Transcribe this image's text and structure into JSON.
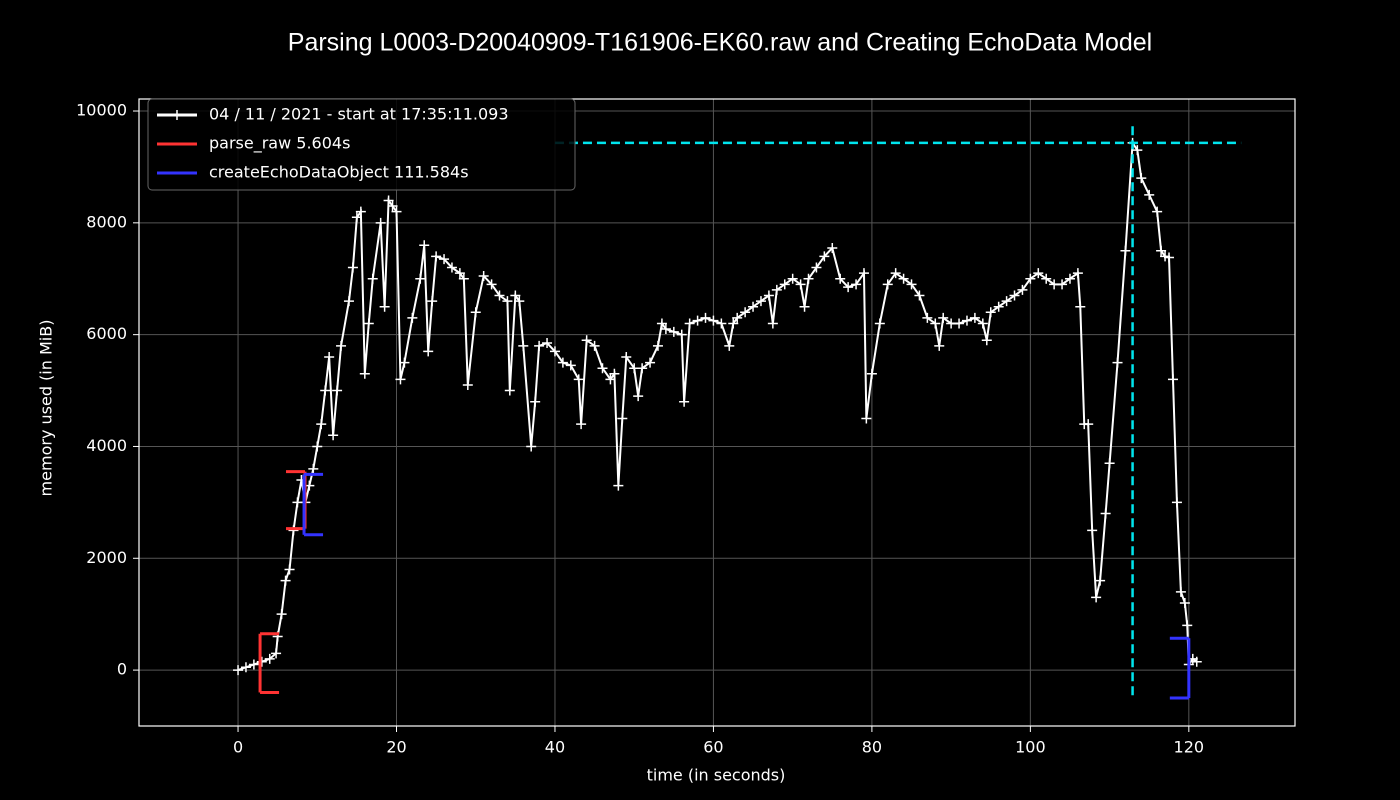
{
  "chart_data": {
    "type": "line",
    "title": "Parsing L0003-D20040909-T161906-EK60.raw and Creating EchoData Model",
    "xlabel": "time (in seconds)",
    "ylabel": "memory used (in MiB)",
    "xlim": [
      -12.5,
      133.4
    ],
    "ylim": [
      -1000,
      10215
    ],
    "xticks": [
      0,
      20,
      40,
      60,
      80,
      100,
      120
    ],
    "yticks": [
      0,
      2000,
      4000,
      6000,
      8000,
      10000
    ],
    "grid": true,
    "legend": "upper left",
    "series": [
      {
        "name": "04 / 11 / 2021 - start at 17:35:11.093",
        "color": "#ffffff",
        "x": [
          0,
          1,
          2,
          3,
          4,
          4.8,
          5,
          5.5,
          6,
          6.5,
          7,
          7.5,
          8,
          8.5,
          9,
          9.5,
          10,
          10.5,
          11,
          11.5,
          12,
          12.5,
          13,
          14,
          14.5,
          15,
          15.5,
          16,
          16.5,
          17,
          18,
          18.5,
          19,
          19.5,
          20,
          20.5,
          21,
          22,
          23,
          23.5,
          24,
          24.5,
          25,
          26,
          27,
          28,
          28.5,
          29,
          30,
          31,
          32,
          33,
          34,
          34.3,
          35,
          35.5,
          36,
          37,
          37.5,
          38,
          39,
          40,
          41,
          42,
          43,
          43.3,
          44,
          45,
          46,
          47,
          47.5,
          48,
          48.5,
          49,
          50,
          50.5,
          51,
          52,
          53,
          53.5,
          54,
          55,
          56,
          56.3,
          57,
          58,
          59,
          60,
          61,
          62,
          62.5,
          63,
          64,
          65,
          66,
          67,
          67.5,
          68,
          69,
          70,
          71,
          71.5,
          72,
          73,
          74,
          75,
          76,
          77,
          78,
          79,
          79.3,
          80,
          81,
          82,
          83,
          84,
          85,
          86,
          87,
          88,
          88.5,
          89,
          90,
          91,
          92,
          93,
          94,
          94.5,
          95,
          96,
          97,
          98,
          99,
          100,
          101,
          102,
          103,
          104,
          105,
          106,
          106.3,
          106.8,
          107.3,
          107.8,
          108.3,
          108.8,
          109.5,
          110,
          111,
          112,
          112.9,
          113.5,
          114,
          115,
          116,
          116.5,
          117,
          117.5,
          118,
          118.5,
          119,
          119.5,
          119.8,
          120,
          120.5,
          121
        ],
        "values": [
          0,
          50,
          100,
          150,
          200,
          300,
          600,
          1000,
          1600,
          1800,
          2500,
          3000,
          3400,
          3000,
          3300,
          3600,
          4000,
          4400,
          5000,
          5600,
          4200,
          5000,
          5800,
          6600,
          7200,
          8100,
          8200,
          5300,
          6200,
          7000,
          8000,
          6500,
          8400,
          8300,
          8200,
          5200,
          5500,
          6300,
          7000,
          7600,
          5700,
          6600,
          7400,
          7350,
          7200,
          7100,
          7000,
          5100,
          6400,
          7050,
          6900,
          6700,
          6600,
          5000,
          6700,
          6600,
          5800,
          4000,
          4800,
          5800,
          5850,
          5700,
          5500,
          5450,
          5200,
          4400,
          5900,
          5800,
          5400,
          5200,
          5300,
          3300,
          4500,
          5600,
          5400,
          4900,
          5400,
          5500,
          5800,
          6200,
          6100,
          6050,
          6000,
          4800,
          6200,
          6250,
          6300,
          6250,
          6200,
          5800,
          6200,
          6300,
          6400,
          6500,
          6600,
          6700,
          6200,
          6800,
          6900,
          7000,
          6900,
          6500,
          7000,
          7200,
          7400,
          7550,
          7000,
          6850,
          6900,
          7100,
          4500,
          5300,
          6200,
          6900,
          7100,
          7000,
          6900,
          6700,
          6300,
          6200,
          5800,
          6300,
          6200,
          6200,
          6250,
          6300,
          6200,
          5900,
          6400,
          6500,
          6600,
          6700,
          6800,
          7000,
          7100,
          7000,
          6900,
          6900,
          7000,
          7100,
          6500,
          4400,
          4400,
          2500,
          1300,
          1600,
          2800,
          3700,
          5500,
          7500,
          9430,
          9300,
          8800,
          8500,
          8200,
          7500,
          7400,
          7380,
          5200,
          3000,
          1400,
          1200,
          800,
          100,
          200,
          150
        ]
      }
    ],
    "functions": [
      {
        "name": "parse_raw 5.604s",
        "color": "#ff3333",
        "start": 2.78,
        "end": 8.45,
        "start_range": [
          -400,
          650
        ],
        "end_range": [
          2530,
          3550
        ]
      },
      {
        "name": "createEchoDataObject 111.584s",
        "color": "#3333ff",
        "start": 8.33,
        "end": 120.0,
        "start_range": [
          2420,
          3500
        ],
        "end_range": [
          -500,
          570
        ]
      }
    ],
    "peak": {
      "x": 112.9,
      "y": 9430,
      "x_extent": [
        40,
        126.6
      ],
      "y_extent": [
        -450,
        9800
      ],
      "color": "#00e5ee"
    }
  }
}
